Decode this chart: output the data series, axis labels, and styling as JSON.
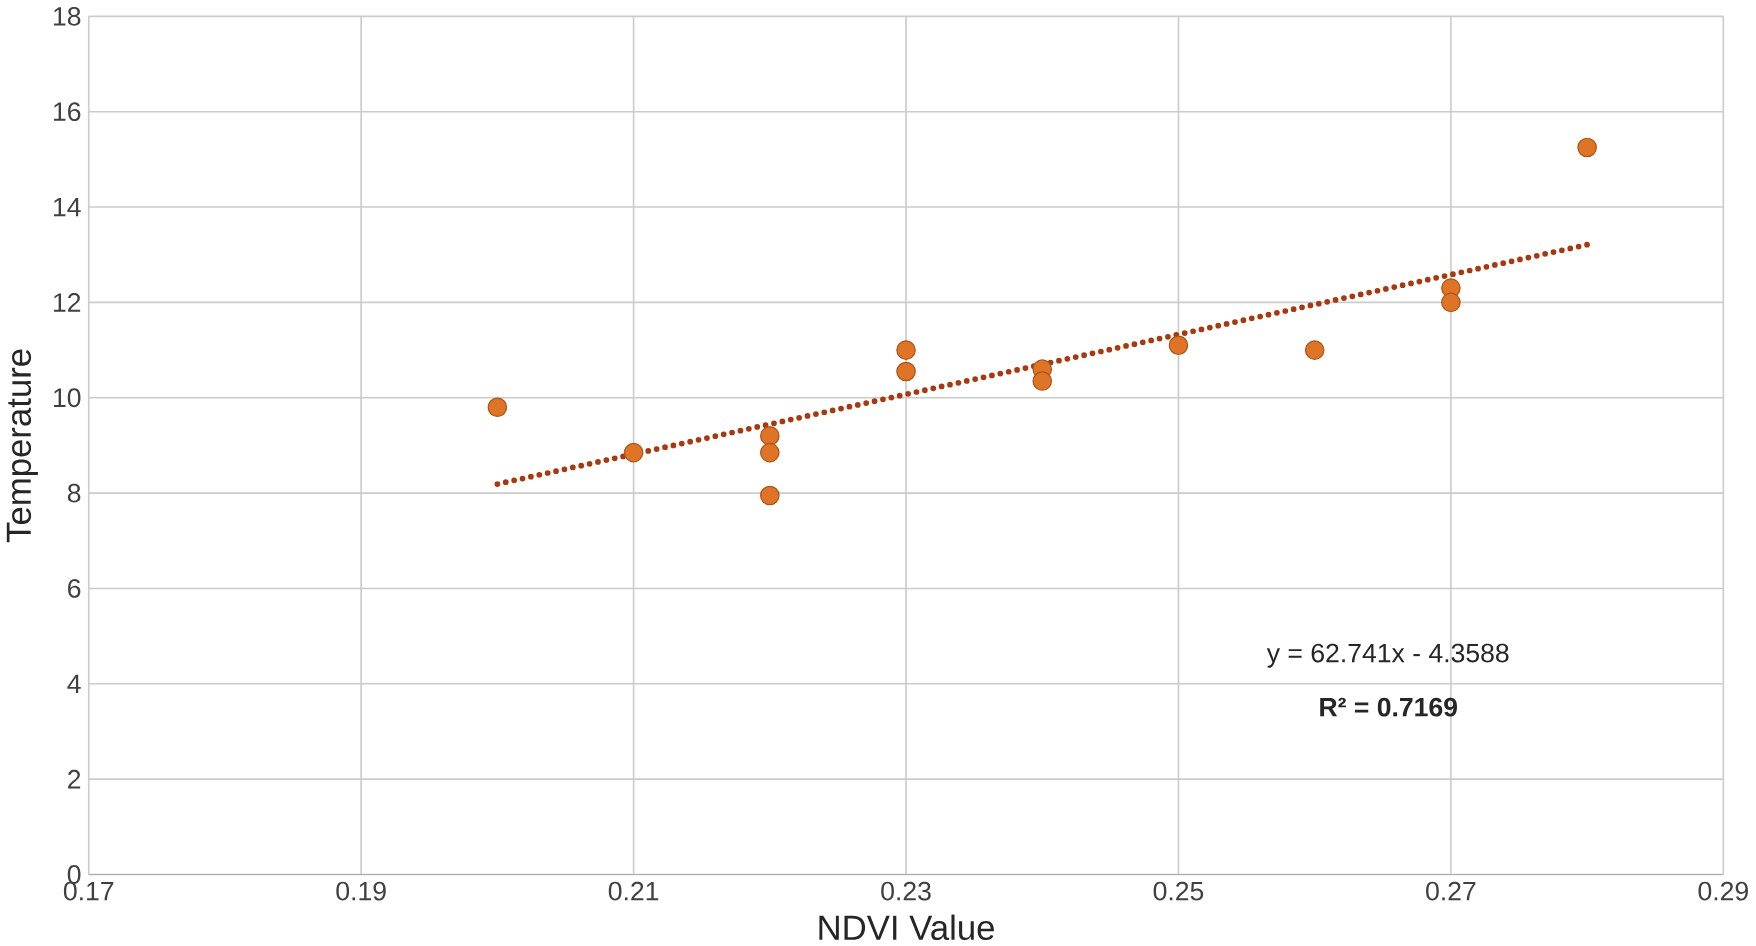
{
  "chart_data": {
    "type": "scatter",
    "xlabel": "NDVI Value",
    "ylabel": "Temperature",
    "xlim": [
      0.17,
      0.29
    ],
    "xticks": [
      0.17,
      0.19,
      0.21,
      0.23,
      0.25,
      0.27,
      0.29
    ],
    "ylim": [
      0,
      18
    ],
    "yticks": [
      0,
      2,
      4,
      6,
      8,
      10,
      12,
      14,
      16,
      18
    ],
    "grid": true,
    "series": [
      {
        "color": "#e07426",
        "marker": "circle",
        "x": [
          0.2,
          0.21,
          0.22,
          0.22,
          0.22,
          0.23,
          0.23,
          0.24,
          0.24,
          0.25,
          0.26,
          0.27,
          0.27,
          0.28
        ],
        "values": [
          9.8,
          8.85,
          9.2,
          8.85,
          7.95,
          11.0,
          10.55,
          10.6,
          10.35,
          11.1,
          11.0,
          12.3,
          12.0,
          15.25
        ]
      },
      {
        "type": "line",
        "color": "#a8380f",
        "line_style": "dotted",
        "marker": "none",
        "x": [
          0.2,
          0.28
        ],
        "values": [
          8.19,
          13.21
        ]
      }
    ],
    "annotations": [
      "y = 62.741x - 4.3588",
      "R² = 0.7169"
    ]
  }
}
